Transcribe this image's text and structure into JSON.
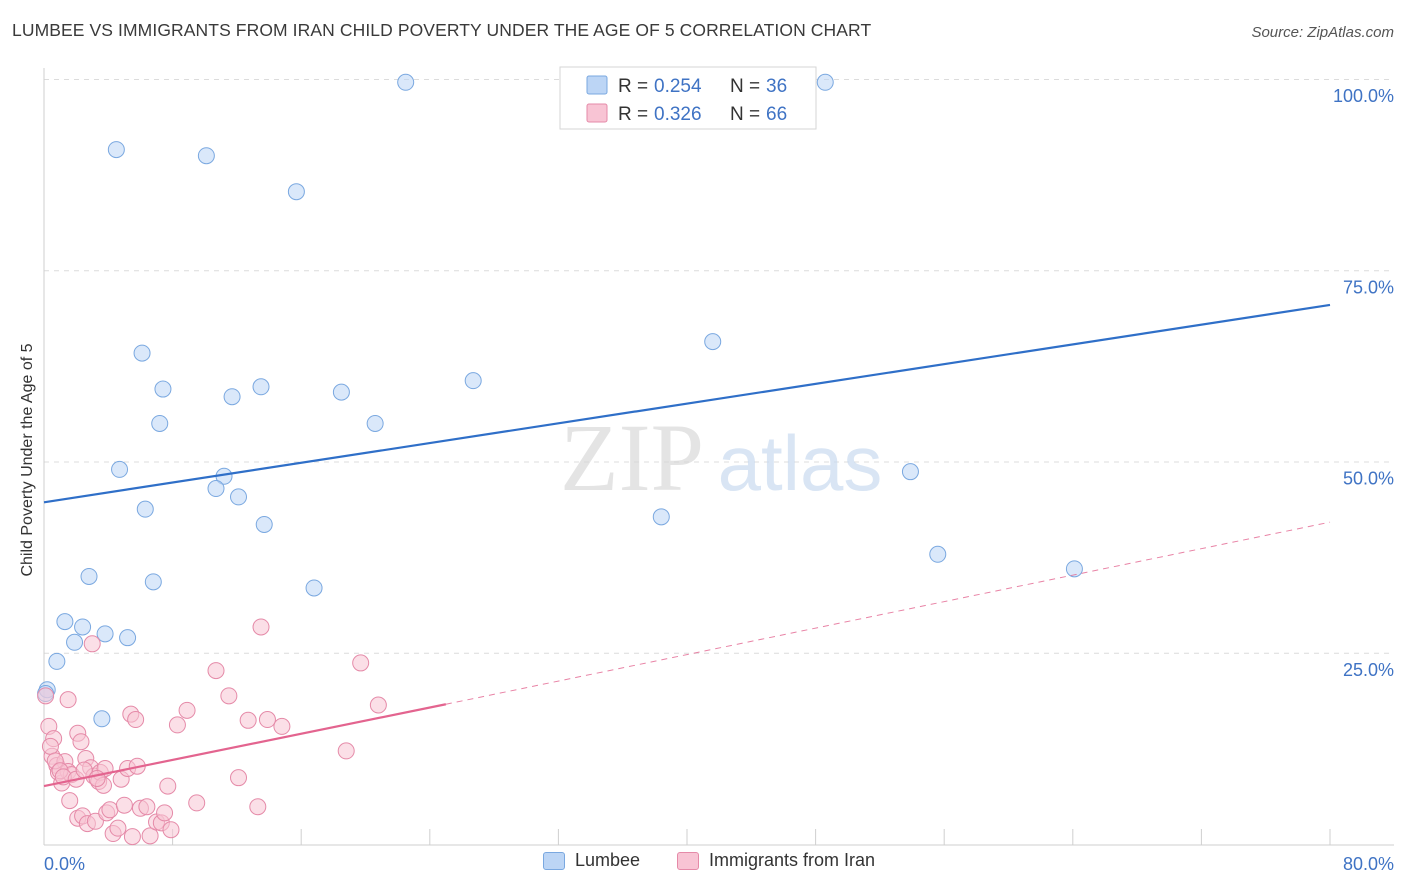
{
  "title": "LUMBEE VS IMMIGRANTS FROM IRAN CHILD POVERTY UNDER THE AGE OF 5 CORRELATION CHART",
  "source": "Source: ZipAtlas.com",
  "watermark": {
    "zip": "ZIP",
    "atlas": "atlas"
  },
  "colors": {
    "blue_fill": "#bcd5f5",
    "blue_stroke": "#7aa8e0",
    "blue_line": "#2f6fc8",
    "pink_fill": "#f8c4d4",
    "pink_stroke": "#e58aa8",
    "pink_line": "#e3648f",
    "tick_text": "#3f73c4",
    "grid": "#dcdcdc"
  },
  "legend_top": [
    {
      "r_label": "R = ",
      "r_value": "0.254",
      "n_label": "N = ",
      "n_value": "36"
    },
    {
      "r_label": "R = ",
      "r_value": "0.326",
      "n_label": "N = ",
      "n_value": "66"
    }
  ],
  "legend_bottom": [
    "Lumbee",
    "Immigrants from Iran"
  ],
  "chart_data": {
    "type": "scatter",
    "title": "LUMBEE VS IMMIGRANTS FROM IRAN CHILD POVERTY UNDER THE AGE OF 5 CORRELATION CHART",
    "xlabel": "",
    "ylabel": "Child Poverty Under the Age of 5",
    "xlim": [
      0,
      80
    ],
    "ylim": [
      0,
      100
    ],
    "x_tick_labels": [
      "0.0%",
      "80.0%"
    ],
    "y_tick_labels": [
      "25.0%",
      "50.0%",
      "75.0%",
      "100.0%"
    ],
    "y_ticks": [
      25,
      50,
      75,
      100
    ],
    "grid": true,
    "legend_position": "top-center",
    "series": [
      {
        "name": "Lumbee",
        "color": "#bcd5f5",
        "trend": {
          "x": [
            0,
            80
          ],
          "y": [
            44.8,
            70.6
          ],
          "style": "solid"
        },
        "points": [
          [
            22.5,
            99.7
          ],
          [
            48.6,
            99.7
          ],
          [
            4.5,
            90.9
          ],
          [
            10.1,
            90.1
          ],
          [
            15.7,
            85.4
          ],
          [
            6.1,
            64.3
          ],
          [
            41.6,
            65.8
          ],
          [
            7.4,
            59.6
          ],
          [
            13.5,
            59.9
          ],
          [
            11.7,
            58.6
          ],
          [
            18.5,
            59.2
          ],
          [
            26.7,
            60.7
          ],
          [
            7.2,
            55.1
          ],
          [
            20.6,
            55.1
          ],
          [
            4.7,
            49.1
          ],
          [
            11.2,
            48.2
          ],
          [
            10.7,
            46.6
          ],
          [
            12.1,
            45.5
          ],
          [
            6.3,
            43.9
          ],
          [
            13.7,
            41.9
          ],
          [
            38.4,
            42.9
          ],
          [
            53.9,
            48.8
          ],
          [
            55.6,
            38.0
          ],
          [
            64.1,
            36.1
          ],
          [
            2.8,
            35.1
          ],
          [
            6.8,
            34.4
          ],
          [
            16.8,
            33.6
          ],
          [
            1.3,
            29.2
          ],
          [
            2.4,
            28.5
          ],
          [
            3.8,
            27.6
          ],
          [
            5.2,
            27.1
          ],
          [
            1.9,
            26.5
          ],
          [
            0.8,
            24.0
          ],
          [
            0.2,
            20.3
          ],
          [
            3.6,
            16.5
          ],
          [
            0.1,
            19.8
          ]
        ]
      },
      {
        "name": "Immigrants from Iran",
        "color": "#f8c4d4",
        "trend": {
          "x": [
            0,
            25
          ],
          "y": [
            7.7,
            18.4
          ],
          "style": "solid",
          "extended_to": [
            80,
            42.2
          ],
          "extended_style": "dashed"
        },
        "points": [
          [
            0.1,
            19.5
          ],
          [
            0.3,
            15.5
          ],
          [
            0.6,
            13.9
          ],
          [
            0.5,
            11.6
          ],
          [
            0.8,
            10.4
          ],
          [
            0.9,
            9.5
          ],
          [
            1.1,
            8.1
          ],
          [
            1.3,
            10.9
          ],
          [
            1.5,
            9.6
          ],
          [
            1.7,
            9.2
          ],
          [
            1.5,
            19.0
          ],
          [
            2.1,
            14.6
          ],
          [
            2.3,
            13.5
          ],
          [
            2.6,
            11.3
          ],
          [
            2.9,
            10.1
          ],
          [
            3.1,
            9.0
          ],
          [
            3.4,
            8.3
          ],
          [
            3.5,
            9.5
          ],
          [
            3.7,
            7.8
          ],
          [
            3.8,
            10.0
          ],
          [
            3.0,
            26.3
          ],
          [
            1.6,
            5.8
          ],
          [
            2.1,
            3.5
          ],
          [
            2.4,
            3.8
          ],
          [
            2.7,
            2.8
          ],
          [
            3.2,
            3.1
          ],
          [
            3.9,
            4.2
          ],
          [
            4.1,
            4.6
          ],
          [
            4.3,
            1.5
          ],
          [
            4.6,
            2.2
          ],
          [
            4.8,
            8.6
          ],
          [
            5.0,
            5.2
          ],
          [
            5.2,
            10.0
          ],
          [
            5.5,
            1.1
          ],
          [
            5.8,
            10.3
          ],
          [
            5.4,
            17.1
          ],
          [
            5.7,
            16.4
          ],
          [
            6.0,
            4.8
          ],
          [
            6.4,
            5.0
          ],
          [
            6.6,
            1.2
          ],
          [
            7.0,
            3.0
          ],
          [
            7.3,
            2.9
          ],
          [
            7.5,
            4.2
          ],
          [
            7.7,
            7.7
          ],
          [
            7.9,
            2.0
          ],
          [
            8.3,
            15.7
          ],
          [
            8.9,
            17.6
          ],
          [
            9.5,
            5.5
          ],
          [
            10.7,
            22.8
          ],
          [
            11.5,
            19.5
          ],
          [
            12.1,
            8.8
          ],
          [
            12.7,
            16.3
          ],
          [
            13.3,
            5.0
          ],
          [
            13.5,
            28.5
          ],
          [
            13.9,
            16.4
          ],
          [
            14.8,
            15.5
          ],
          [
            18.8,
            12.3
          ],
          [
            19.7,
            23.8
          ],
          [
            20.8,
            18.3
          ],
          [
            0.4,
            12.9
          ],
          [
            0.7,
            11.0
          ],
          [
            1.0,
            9.7
          ],
          [
            1.2,
            8.9
          ],
          [
            2.0,
            8.6
          ],
          [
            2.5,
            9.8
          ],
          [
            3.3,
            8.7
          ]
        ]
      }
    ]
  }
}
